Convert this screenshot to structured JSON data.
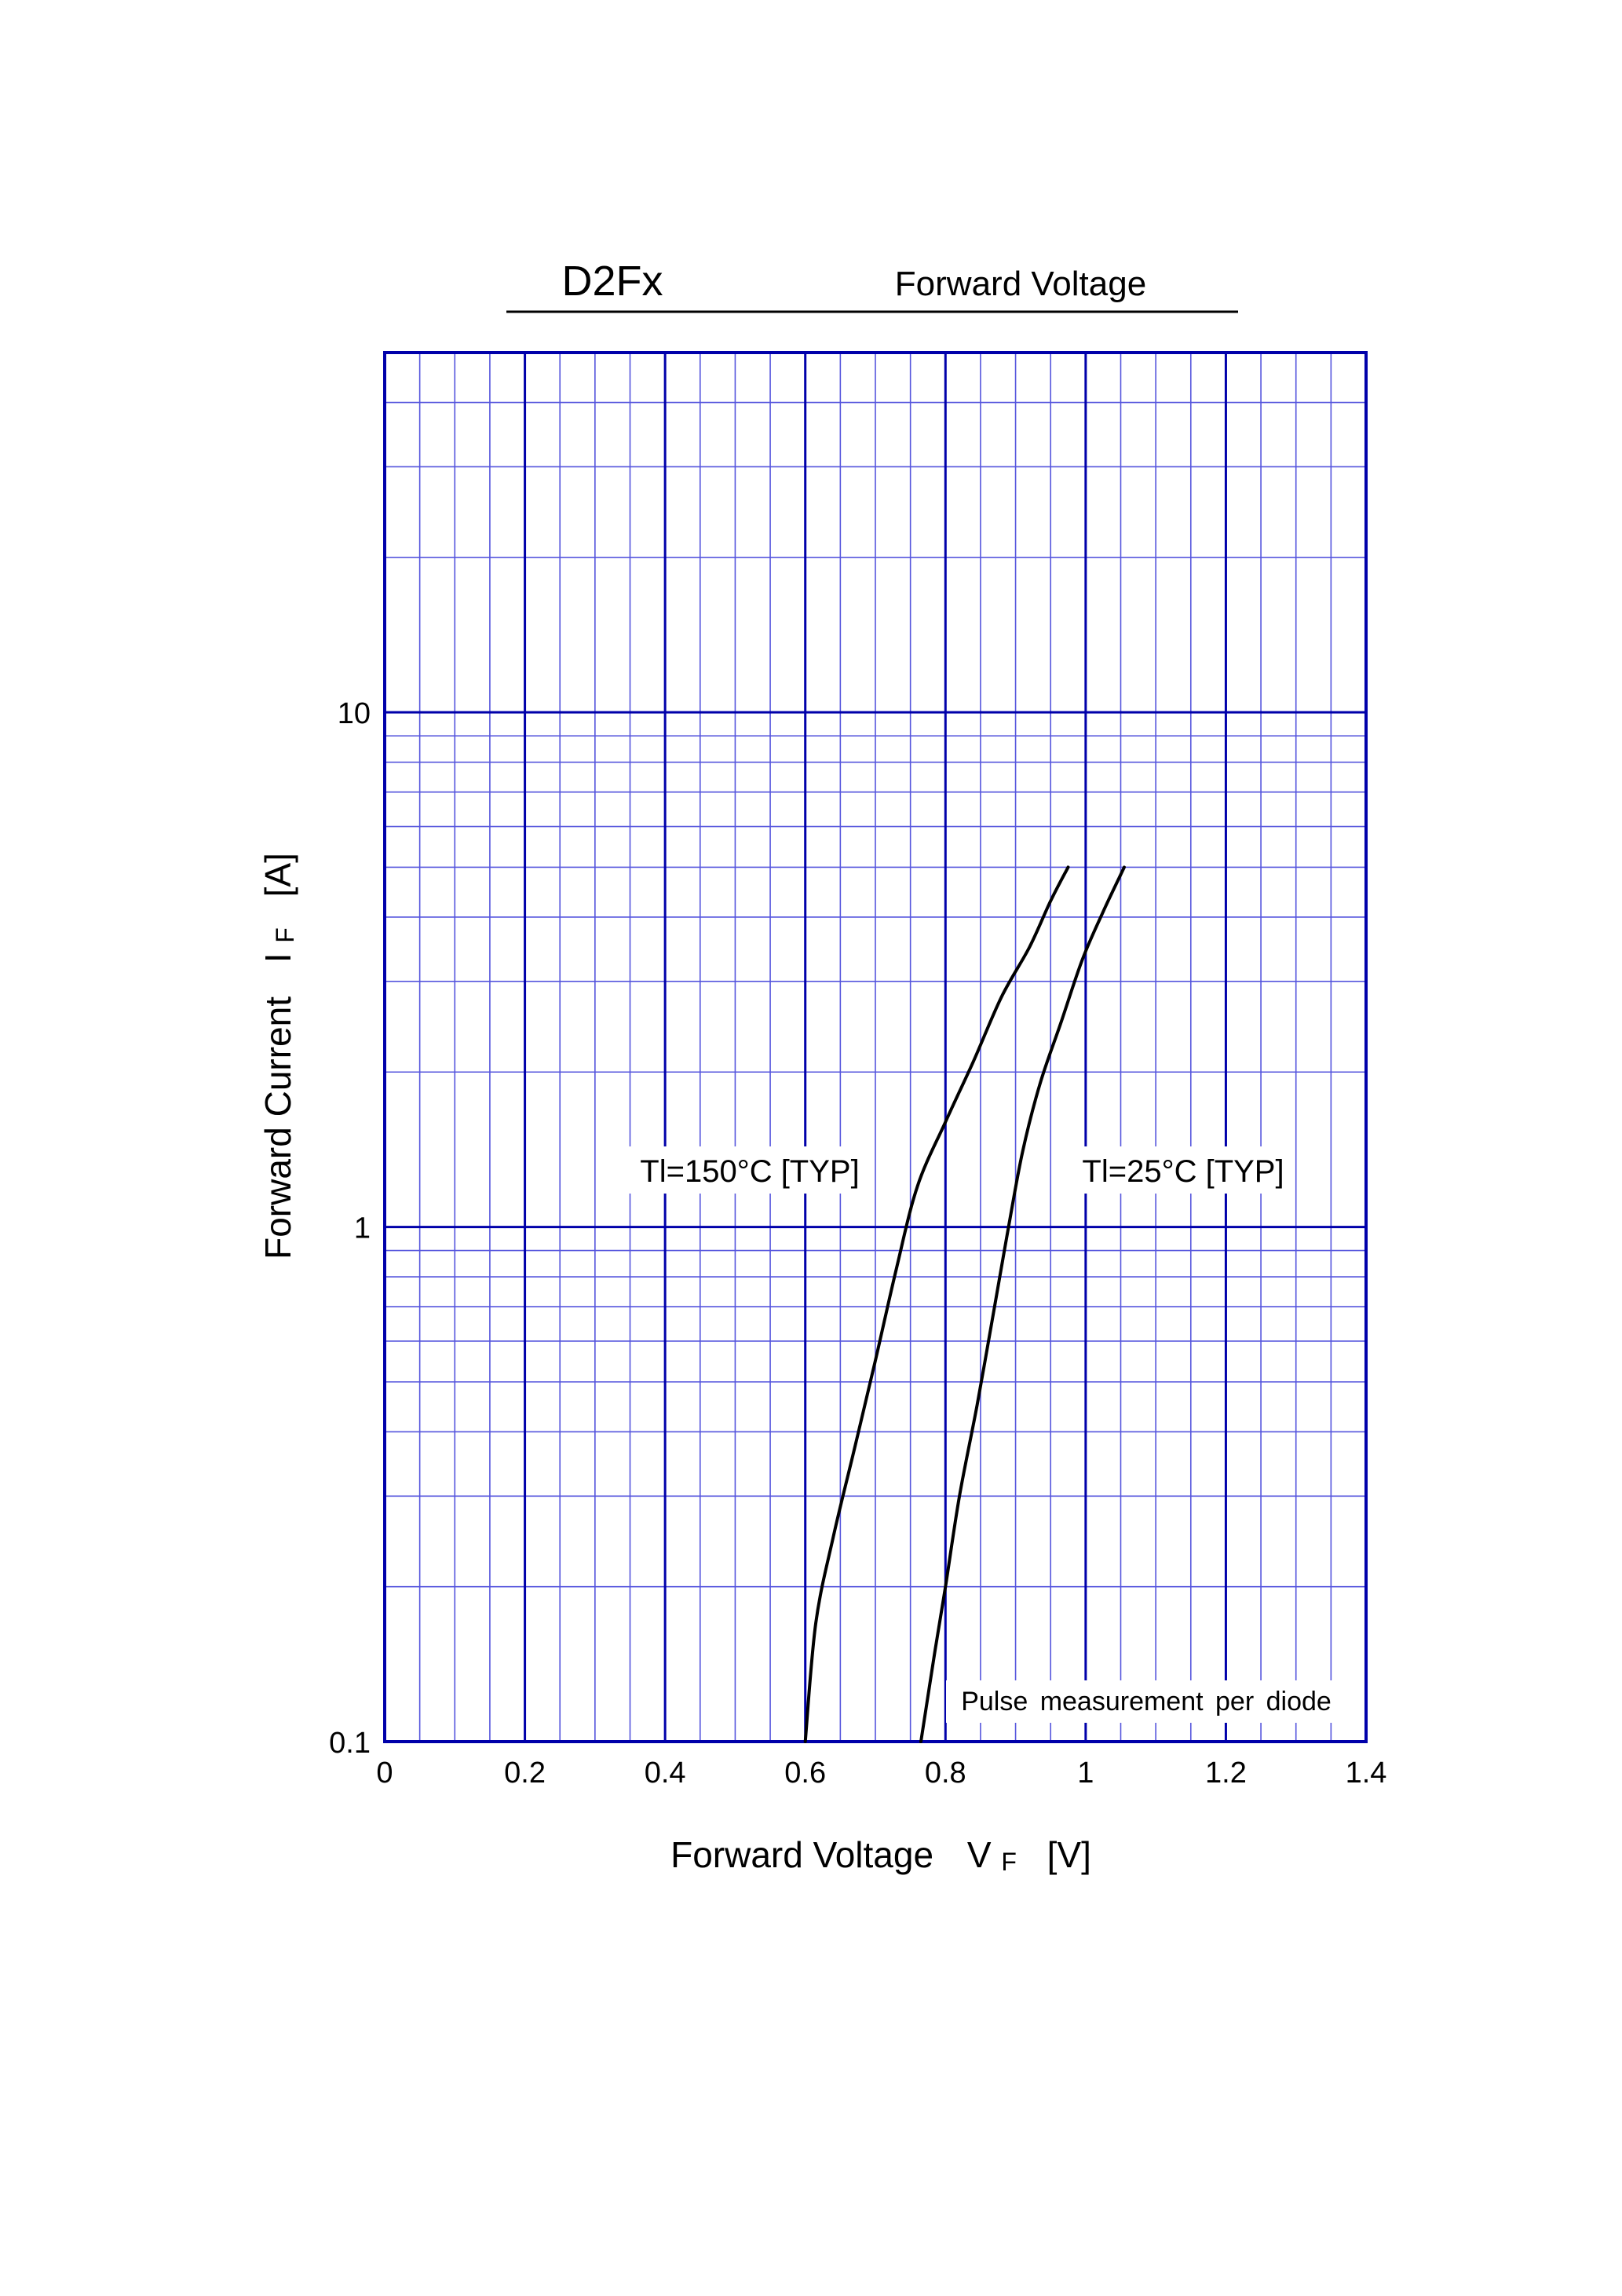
{
  "chart_data": {
    "type": "line",
    "part_number": "D2Fx",
    "title": "Forward Voltage",
    "xlabel": "Forward Voltage",
    "xlabel_symbol": "V",
    "xlabel_subscript": "F",
    "xlabel_unit": "[V]",
    "ylabel": "Forward Current",
    "ylabel_symbol": "I",
    "ylabel_subscript": "F",
    "ylabel_unit": "[A]",
    "xlim": [
      0,
      1.4
    ],
    "ylim": [
      0.1,
      50
    ],
    "yscale": "log",
    "grid": true,
    "x_ticks": [
      "0",
      "0.2",
      "0.4",
      "0.6",
      "0.8",
      "1",
      "1.2",
      "1.4"
    ],
    "x_tick_values": [
      0,
      0.2,
      0.4,
      0.6,
      0.8,
      1,
      1.2,
      1.4
    ],
    "y_ticks": [
      "0.1",
      "1",
      "10"
    ],
    "y_tick_values": [
      0.1,
      1,
      10
    ],
    "note": "Pulse measurement per diode",
    "series": [
      {
        "name": "Tl=150°C [TYP]",
        "x": [
          0.6,
          0.615,
          0.64,
          0.67,
          0.7,
          0.73,
          0.76,
          0.8,
          0.84,
          0.88,
          0.92,
          0.95,
          0.975
        ],
        "y": [
          0.1,
          0.17,
          0.25,
          0.37,
          0.55,
          0.83,
          1.2,
          1.6,
          2.1,
          2.8,
          3.5,
          4.3,
          5.0
        ]
      },
      {
        "name": "Tl=25°C [TYP]",
        "x": [
          0.765,
          0.785,
          0.8,
          0.82,
          0.845,
          0.87,
          0.89,
          0.91,
          0.935,
          0.965,
          0.995,
          1.025,
          1.055
        ],
        "y": [
          0.1,
          0.15,
          0.2,
          0.3,
          0.45,
          0.7,
          1.0,
          1.4,
          1.9,
          2.5,
          3.3,
          4.1,
          5.0
        ]
      }
    ],
    "colors": {
      "grid_major": "#0000aa",
      "grid_minor": "#5555dd",
      "curve": "#000000"
    }
  }
}
